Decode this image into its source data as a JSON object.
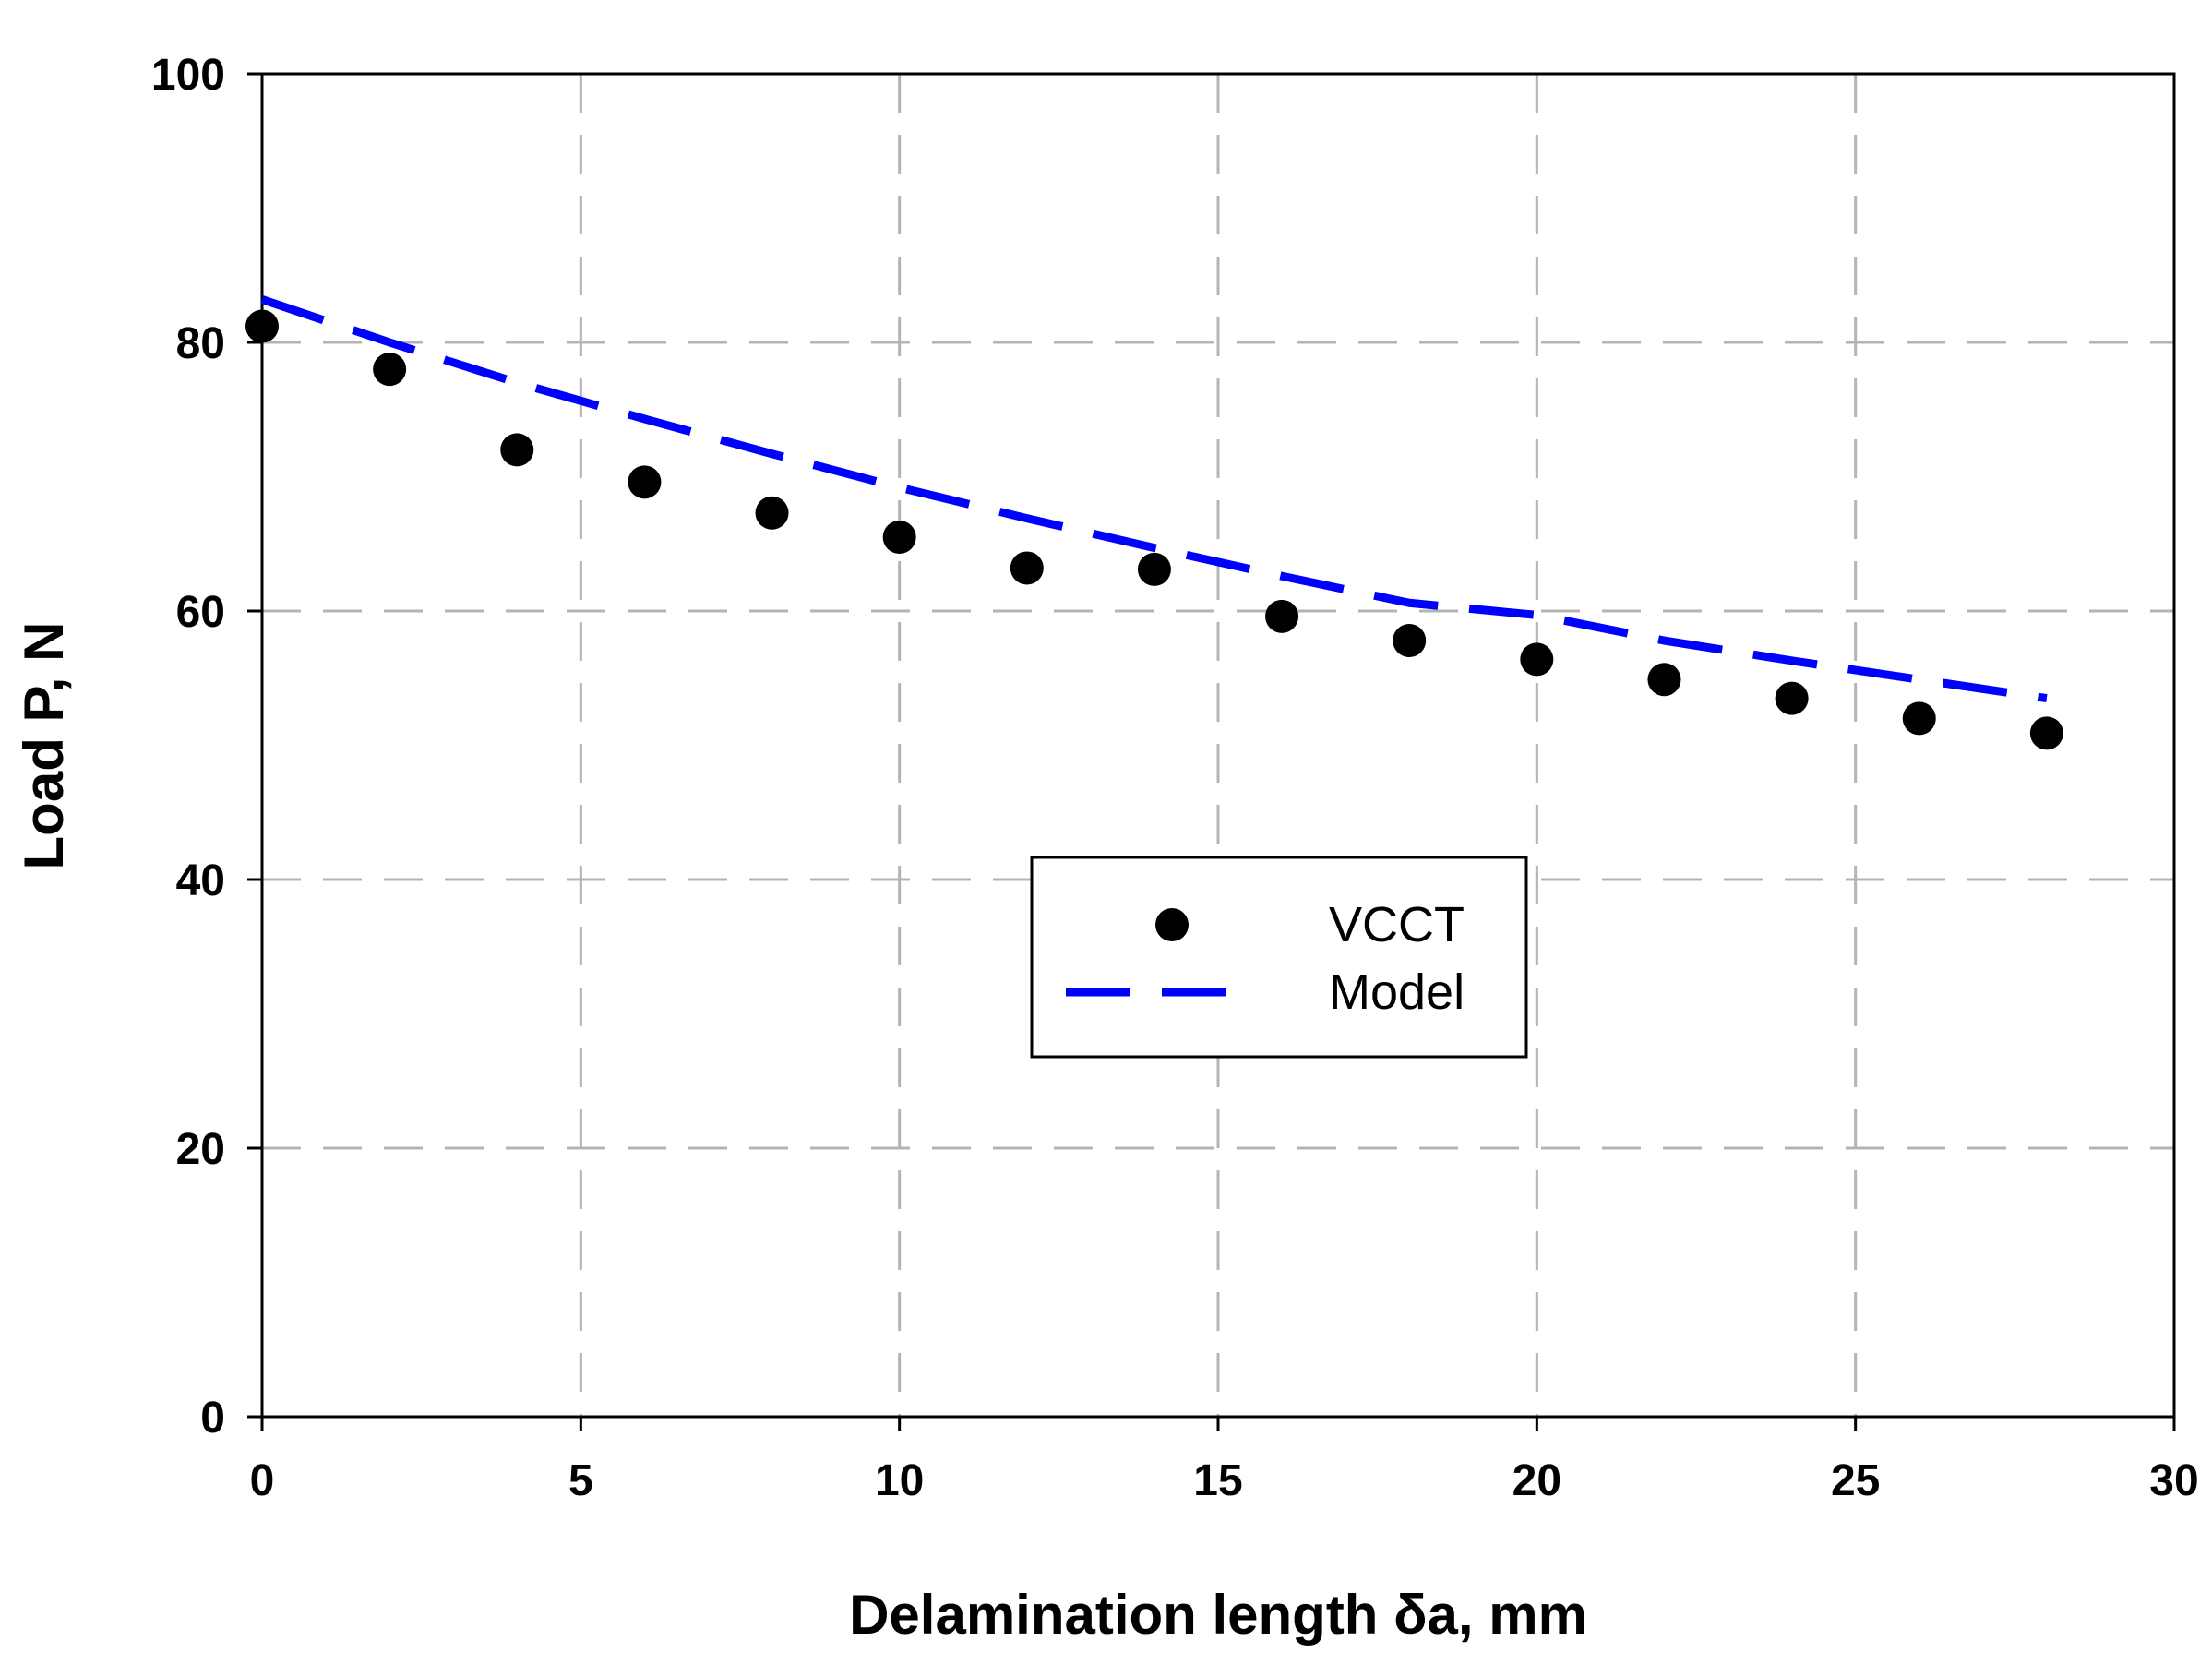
{
  "chart_data": {
    "type": "scatter",
    "title": "",
    "xlabel": "Delamination length δa, mm",
    "ylabel": "Load P, N",
    "xlim": [
      0,
      30
    ],
    "ylim": [
      0,
      100
    ],
    "xticks": [
      0,
      5,
      10,
      15,
      20,
      25,
      30
    ],
    "yticks": [
      0,
      20,
      40,
      60,
      80,
      100
    ],
    "grid": true,
    "legend_position": "center",
    "series": [
      {
        "name": "VCCT",
        "kind": "markers",
        "color": "#000000",
        "x": [
          0,
          2,
          4,
          6,
          8,
          10,
          12,
          14,
          16,
          18,
          20,
          22,
          24,
          26,
          28
        ],
        "y": [
          81.2,
          78.0,
          72.0,
          69.6,
          67.3,
          65.5,
          63.2,
          63.1,
          59.6,
          57.8,
          56.4,
          54.9,
          53.5,
          52.0,
          50.9
        ]
      },
      {
        "name": "Model",
        "kind": "dashed-line",
        "color": "#0000ff",
        "x": [
          0,
          2,
          4,
          6,
          8,
          10,
          12,
          14,
          16,
          18,
          20,
          22,
          24,
          26,
          28
        ],
        "y": [
          83.2,
          80.0,
          77.0,
          74.3,
          71.7,
          69.2,
          66.9,
          64.7,
          62.6,
          60.6,
          59.7,
          57.8,
          56.3,
          54.9,
          53.5
        ]
      }
    ]
  }
}
